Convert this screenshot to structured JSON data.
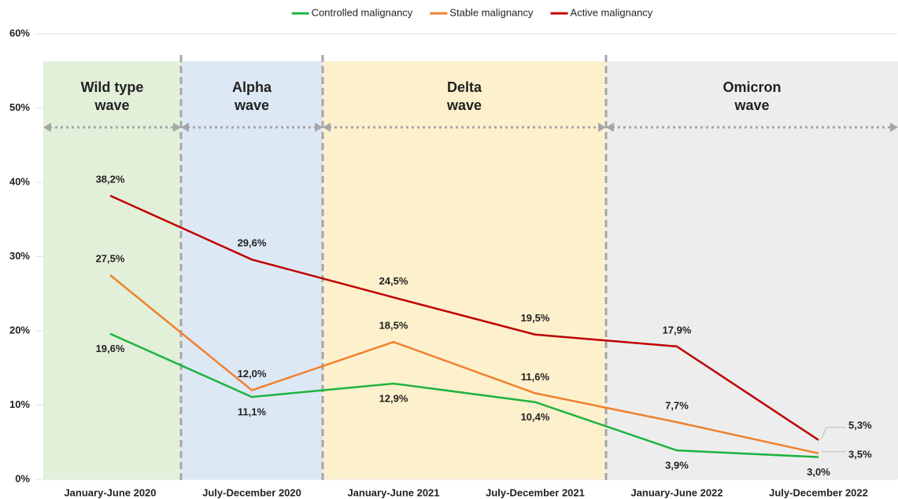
{
  "chart_data": {
    "type": "line",
    "categories": [
      "January-June 2020",
      "July-December 2020",
      "January-June 2021",
      "July-December 2021",
      "January-June 2022",
      "July-December 2022"
    ],
    "series": [
      {
        "name": "Controlled malignancy",
        "color": "#1db33f",
        "values": [
          19.6,
          11.1,
          12.9,
          10.4,
          3.9,
          3.0
        ],
        "value_labels": [
          "19,6%",
          "11,1%",
          "12,9%",
          "10,4%",
          "3,9%",
          "3,0%"
        ]
      },
      {
        "name": "Stable malignancy",
        "color": "#f0802e",
        "values": [
          27.5,
          12.0,
          18.5,
          11.6,
          7.7,
          3.5
        ],
        "value_labels": [
          "27,5%",
          "12,0%",
          "18,5%",
          "11,6%",
          "7,7%",
          "3,5%"
        ]
      },
      {
        "name": "Active malignancy",
        "color": "#c00000",
        "values": [
          38.2,
          29.6,
          24.5,
          19.5,
          17.9,
          5.3
        ],
        "value_labels": [
          "38,2%",
          "29,6%",
          "24,5%",
          "19,5%",
          "17,9%",
          "5,3%"
        ]
      }
    ],
    "waves": [
      [
        "Wild type",
        "wave"
      ],
      [
        "Alpha",
        "wave"
      ],
      [
        "Delta",
        "wave"
      ],
      [
        "Omicron",
        "wave"
      ]
    ],
    "ylim": [
      0,
      60
    ],
    "yticks": [
      {
        "value": 0,
        "label": "0%"
      },
      {
        "value": 10,
        "label": "10%"
      },
      {
        "value": 20,
        "label": "20%"
      },
      {
        "value": 30,
        "label": "30%"
      },
      {
        "value": 40,
        "label": "40%"
      },
      {
        "value": 50,
        "label": "50%"
      },
      {
        "value": 60,
        "label": "60%"
      }
    ],
    "grid": true,
    "legend": "top"
  }
}
